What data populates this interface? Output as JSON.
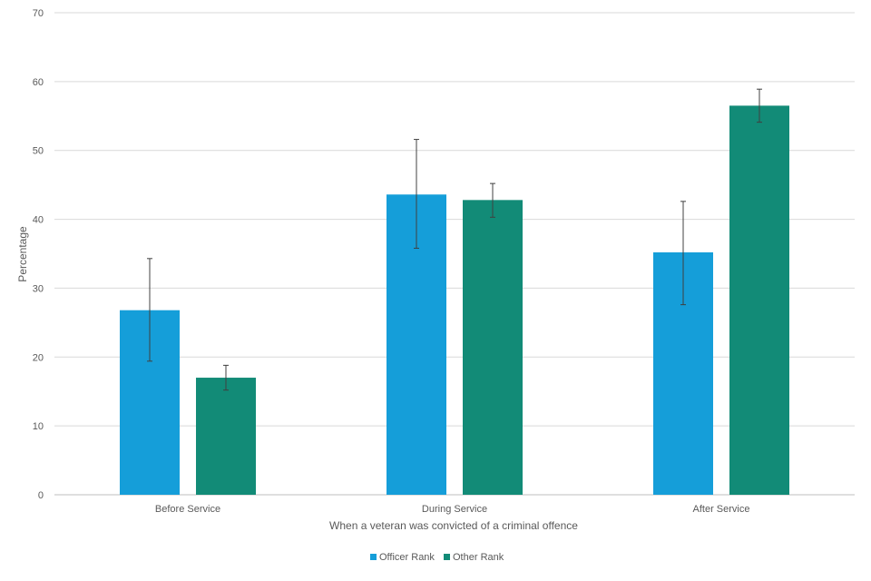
{
  "chart_data": {
    "type": "bar",
    "title": "",
    "xlabel": "When a veteran  was convicted of a criminal offence",
    "ylabel": "Percentage",
    "ylim": [
      0,
      70
    ],
    "yticks": [
      0,
      10,
      20,
      30,
      40,
      50,
      60,
      70
    ],
    "grid": true,
    "legend_position": "bottom",
    "categories": [
      "Before Service",
      "During Service",
      "After Service"
    ],
    "series": [
      {
        "name": "Officer Rank",
        "color": "#159ed9",
        "values": [
          26.8,
          43.6,
          35.2
        ],
        "error_low": [
          19.4,
          35.8,
          27.6
        ],
        "error_high": [
          34.3,
          51.6,
          42.6
        ]
      },
      {
        "name": "Other Rank",
        "color": "#128b77",
        "values": [
          17.0,
          42.8,
          56.5
        ],
        "error_low": [
          15.2,
          40.3,
          54.1
        ],
        "error_high": [
          18.8,
          45.2,
          58.9
        ]
      }
    ]
  }
}
